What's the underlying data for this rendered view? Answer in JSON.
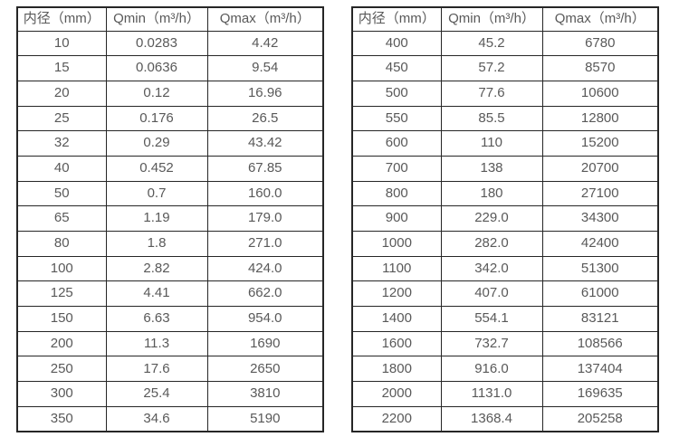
{
  "theme": {
    "background": "#ffffff",
    "border_color": "#262626",
    "text_color": "#595959"
  },
  "headers": [
    "内径（mm）",
    "Qmin（m³/h）",
    "Qmax（m³/h）"
  ],
  "tables": [
    {
      "name": "small-diameter-flow-ranges",
      "rows": [
        [
          "10",
          "0.0283",
          "4.42"
        ],
        [
          "15",
          "0.0636",
          "9.54"
        ],
        [
          "20",
          "0.12",
          "16.96"
        ],
        [
          "25",
          "0.176",
          "26.5"
        ],
        [
          "32",
          "0.29",
          "43.42"
        ],
        [
          "40",
          "0.452",
          "67.85"
        ],
        [
          "50",
          "0.7",
          "160.0"
        ],
        [
          "65",
          "1.19",
          "179.0"
        ],
        [
          "80",
          "1.8",
          "271.0"
        ],
        [
          "100",
          "2.82",
          "424.0"
        ],
        [
          "125",
          "4.41",
          "662.0"
        ],
        [
          "150",
          "6.63",
          "954.0"
        ],
        [
          "200",
          "11.3",
          "1690"
        ],
        [
          "250",
          "17.6",
          "2650"
        ],
        [
          "300",
          "25.4",
          "3810"
        ],
        [
          "350",
          "34.6",
          "5190"
        ]
      ]
    },
    {
      "name": "large-diameter-flow-ranges",
      "rows": [
        [
          "400",
          "45.2",
          "6780"
        ],
        [
          "450",
          "57.2",
          "8570"
        ],
        [
          "500",
          "77.6",
          "10600"
        ],
        [
          "550",
          "85.5",
          "12800"
        ],
        [
          "600",
          "110",
          "15200"
        ],
        [
          "700",
          "138",
          "20700"
        ],
        [
          "800",
          "180",
          "27100"
        ],
        [
          "900",
          "229.0",
          "34300"
        ],
        [
          "1000",
          "282.0",
          "42400"
        ],
        [
          "1100",
          "342.0",
          "51300"
        ],
        [
          "1200",
          "407.0",
          "61000"
        ],
        [
          "1400",
          "554.1",
          "83121"
        ],
        [
          "1600",
          "732.7",
          "108566"
        ],
        [
          "1800",
          "916.0",
          "137404"
        ],
        [
          "2000",
          "1131.0",
          "169635"
        ],
        [
          "2200",
          "1368.4",
          "205258"
        ]
      ]
    }
  ]
}
